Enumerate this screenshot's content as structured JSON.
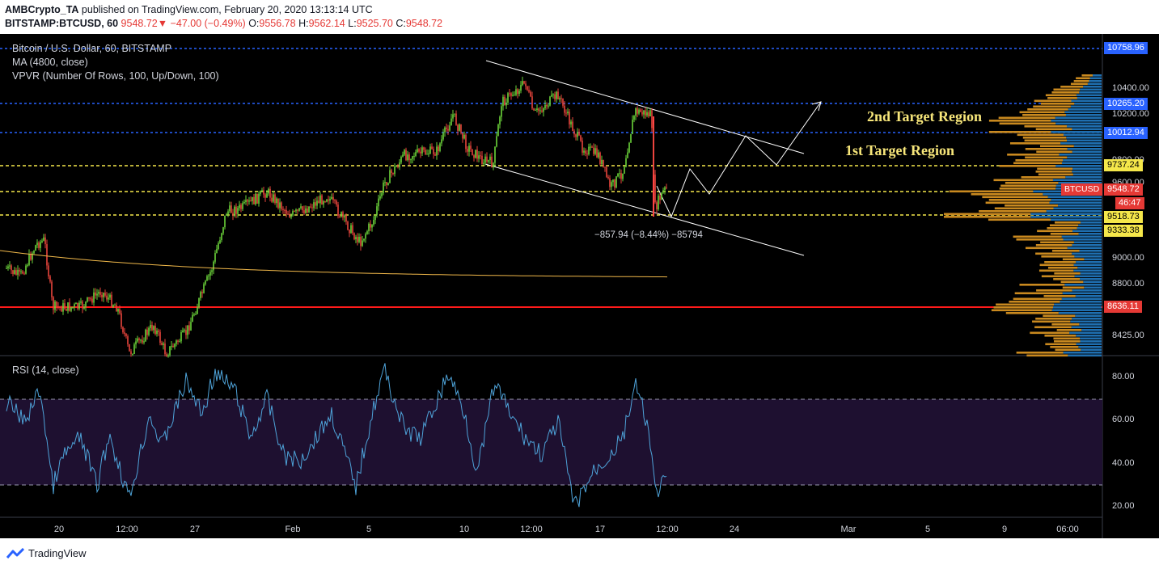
{
  "header": {
    "publisher": "AMBCrypto_TA",
    "published_text": "published on TradingView.com, February 20, 2020 13:13:14 UTC",
    "symbol": "BITSTAMP:BTCUSD, 60",
    "price": "9548.72",
    "change": "−47.00 (−0.49%)",
    "o_label": "O:",
    "o": "9556.78",
    "h_label": "H:",
    "h": "9562.14",
    "l_label": "L:",
    "l": "9525.70",
    "c_label": "C:",
    "c": "9548.72"
  },
  "legend": {
    "title": "Bitcoin / U.S. Dollar, 60, BITSTAMP",
    "ma": "MA (4800, close)",
    "vpvr": "VPVR (Number Of Rows, 100, Up/Down, 100)"
  },
  "annotations": {
    "target2": "2nd Target Region",
    "target1": "1st Target Region",
    "measure": "−857.94 (−8.44%) −85794"
  },
  "price_axis": {
    "ticks": [
      "10400.00",
      "10200.00",
      "9800.00",
      "9600.00",
      "9000.00",
      "8800.00",
      "8425.00"
    ]
  },
  "price_labels": {
    "p10758": "10758.96",
    "p10265": "10265.20",
    "p10012": "10012.94",
    "p9737": "9737.24",
    "btc_name": "BTCUSD",
    "btc_price": "9548.72",
    "countdown": "46:47",
    "p9518": "9518.73",
    "p9333": "9333.38",
    "p8636": "8636.11"
  },
  "rsi": {
    "title": "RSI (14, close)",
    "ticks": [
      "80.00",
      "60.00",
      "40.00",
      "20.00"
    ]
  },
  "time_axis": {
    "ticks": [
      "20",
      "12:00",
      "27",
      "Feb",
      "5",
      "10",
      "12:00",
      "17",
      "12:00",
      "24",
      "Mar",
      "5",
      "9",
      "06:00"
    ]
  },
  "footer": {
    "brand": "TradingView"
  },
  "colors": {
    "up": "#6bd43a",
    "down": "#e8453c",
    "ma": "#f0b84a",
    "rsi": "#4ea3d9",
    "rsi_band": "#1e1030",
    "red_line": "#ff1a1a",
    "blue_level": "#2962ff",
    "yellow_level": "#f5e74a",
    "vp_up": "#1f6fb0",
    "vp_down": "#c9891f"
  }
}
